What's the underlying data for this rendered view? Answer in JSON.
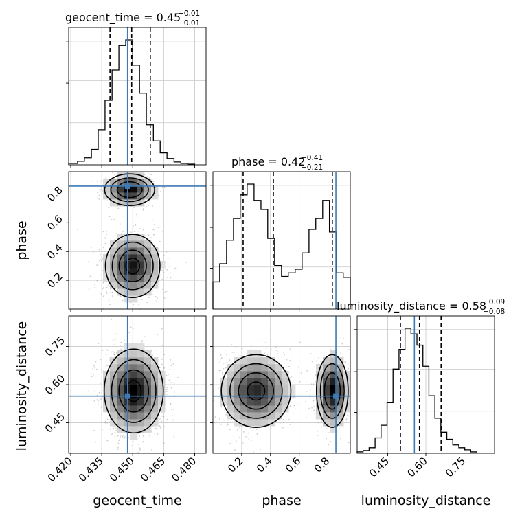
{
  "colors": {
    "truth": "#3d7ab5",
    "hist": "#000000",
    "grid": "#c8c8c8",
    "contour": "#000000",
    "points": "#a8a8a8"
  },
  "chart_data": {
    "type": "corner",
    "parameters": [
      "geocent_time",
      "phase",
      "luminosity_distance"
    ],
    "truths": {
      "geocent_time": 0.4475,
      "phase": 0.855,
      "luminosity_distance": 0.555
    },
    "titles": [
      {
        "param": "geocent_time",
        "prefix": "geocent_time = 0.45",
        "plus": "+0.01",
        "minus": "−0.01"
      },
      {
        "param": "phase",
        "prefix": "phase = 0.42",
        "plus": "+0.41",
        "minus": "−0.21"
      },
      {
        "param": "luminosity_distance",
        "prefix": "luminosity_distance = 0.58",
        "plus": "+0.09",
        "minus": "−0.08"
      }
    ],
    "axes": {
      "geocent_time": {
        "range": [
          0.419,
          0.4855
        ],
        "ticks": [
          0.42,
          0.435,
          0.45,
          0.465,
          0.48
        ],
        "tick_labels": [
          "0.420",
          "0.435",
          "0.450",
          "0.465",
          "0.480"
        ]
      },
      "phase": {
        "range": [
          0.0,
          0.955
        ],
        "ticks": [
          0.2,
          0.4,
          0.6,
          0.8
        ],
        "tick_labels": [
          "0.2",
          "0.4",
          "0.6",
          "0.8"
        ]
      },
      "luminosity_distance": {
        "range": [
          0.33,
          0.87
        ],
        "ticks": [
          0.45,
          0.6,
          0.75
        ],
        "tick_labels": [
          "0.45",
          "0.60",
          "0.75"
        ]
      }
    },
    "histograms": {
      "geocent_time": {
        "quantiles": [
          0.439,
          0.4495,
          0.4585
        ],
        "edges": [
          0.419,
          0.4233,
          0.4266,
          0.43,
          0.4333,
          0.4366,
          0.44,
          0.4433,
          0.4466,
          0.45,
          0.4533,
          0.4566,
          0.46,
          0.4633,
          0.4666,
          0.47,
          0.4733,
          0.4766,
          0.48
        ],
        "counts": [
          2,
          5,
          10,
          22,
          50,
          92,
          135,
          170,
          178,
          142,
          102,
          57,
          34,
          17,
          9,
          4,
          2,
          1
        ]
      },
      "phase": {
        "quantiles": [
          0.21,
          0.42,
          0.83
        ],
        "edges": [
          0.0,
          0.047,
          0.095,
          0.143,
          0.19,
          0.238,
          0.286,
          0.334,
          0.381,
          0.429,
          0.477,
          0.524,
          0.572,
          0.62,
          0.668,
          0.715,
          0.763,
          0.81,
          0.858,
          0.906,
          0.955
        ],
        "counts": [
          30,
          50,
          76,
          100,
          126,
          138,
          120,
          110,
          78,
          48,
          36,
          40,
          44,
          62,
          88,
          100,
          120,
          85,
          40,
          35
        ]
      },
      "luminosity_distance": {
        "quantiles": [
          0.5,
          0.575,
          0.66
        ],
        "edges": [
          0.33,
          0.3535,
          0.377,
          0.4005,
          0.424,
          0.4475,
          0.471,
          0.4945,
          0.518,
          0.5415,
          0.565,
          0.5885,
          0.612,
          0.6355,
          0.659,
          0.6825,
          0.706,
          0.7295,
          0.753,
          0.7765,
          0.8
        ],
        "counts": [
          2,
          4,
          8,
          22,
          40,
          72,
          120,
          148,
          178,
          170,
          154,
          124,
          82,
          50,
          30,
          20,
          12,
          8,
          5,
          2
        ]
      }
    },
    "pairs": [
      {
        "x": "geocent_time",
        "y": "phase",
        "modes": [
          {
            "mx": 0.45,
            "my": 0.3,
            "sx": 0.006,
            "sy": 0.1,
            "w": 0.66
          },
          {
            "mx": 0.4485,
            "my": 0.83,
            "sx": 0.0055,
            "sy": 0.05,
            "w": 0.34
          }
        ]
      },
      {
        "x": "geocent_time",
        "y": "luminosity_distance",
        "modes": [
          {
            "mx": 0.4505,
            "my": 0.575,
            "sx": 0.0065,
            "sy": 0.075,
            "w": 1.0
          }
        ]
      },
      {
        "x": "phase",
        "y": "luminosity_distance",
        "modes": [
          {
            "mx": 0.3,
            "my": 0.575,
            "sx": 0.11,
            "sy": 0.065,
            "w": 0.64
          },
          {
            "mx": 0.83,
            "my": 0.575,
            "sx": 0.05,
            "sy": 0.065,
            "w": 0.36
          }
        ]
      }
    ]
  }
}
